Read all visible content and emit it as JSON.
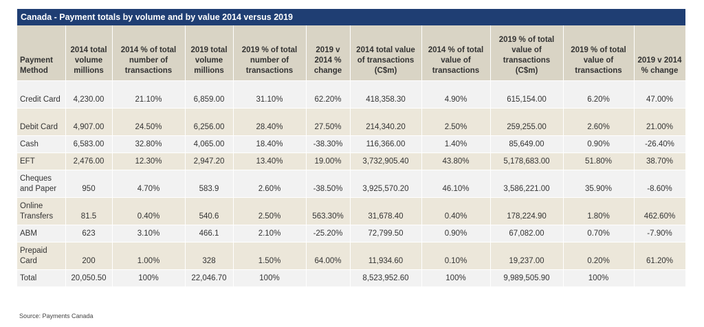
{
  "title": "Canada - Payment totals by volume and by value 2014 versus 2019",
  "headers": [
    "Payment Method",
    "2014 total volume millions",
    "2014 % of total number of transactions",
    "2019 total volume millions",
    "2019 % of total number of transactions",
    "2019 v 2014 % change",
    "2014 total value of transactions (C$m)",
    "2014 % of total value of transactions",
    "2019 % of total value of transactions (C$m)",
    "2019 % of total value of transactions",
    "2019 v 2014 % change"
  ],
  "rows": [
    [
      "Credit Card",
      "4,230.00",
      "21.10%",
      "6,859.00",
      "31.10%",
      "62.20%",
      "418,358.30",
      "4.90%",
      "615,154.00",
      "6.20%",
      "47.00%"
    ],
    [
      "Debit Card",
      "4,907.00",
      "24.50%",
      "6,256.00",
      "28.40%",
      "27.50%",
      "214,340.20",
      "2.50%",
      "259,255.00",
      "2.60%",
      "21.00%"
    ],
    [
      "Cash",
      "6,583.00",
      "32.80%",
      "4,065.00",
      "18.40%",
      "-38.30%",
      "116,366.00",
      "1.40%",
      "85,649.00",
      "0.90%",
      "-26.40%"
    ],
    [
      "EFT",
      "2,476.00",
      "12.30%",
      "2,947.20",
      "13.40%",
      "19.00%",
      "3,732,905.40",
      "43.80%",
      "5,178,683.00",
      "51.80%",
      "38.70%"
    ],
    [
      "Cheques and Paper",
      "950",
      "4.70%",
      "583.9",
      "2.60%",
      "-38.50%",
      "3,925,570.20",
      "46.10%",
      "3,586,221.00",
      "35.90%",
      "-8.60%"
    ],
    [
      "Online Transfers",
      "81.5",
      "0.40%",
      "540.6",
      "2.50%",
      "563.30%",
      "31,678.40",
      "0.40%",
      "178,224.90",
      "1.80%",
      "462.60%"
    ],
    [
      "ABM",
      "623",
      "3.10%",
      "466.1",
      "2.10%",
      "-25.20%",
      "72,799.50",
      "0.90%",
      "67,082.00",
      "0.70%",
      "-7.90%"
    ],
    [
      "Prepaid Card",
      "200",
      "1.00%",
      "328",
      "1.50%",
      "64.00%",
      "11,934.60",
      "0.10%",
      "19,237.00",
      "0.20%",
      "61.20%"
    ],
    [
      "Total",
      "20,050.50",
      "100%",
      "22,046.70",
      "100%",
      "",
      "8,523,952.60",
      "100%",
      "9,989,505.90",
      "100%",
      ""
    ]
  ],
  "source": "Source: Payments Canada"
}
